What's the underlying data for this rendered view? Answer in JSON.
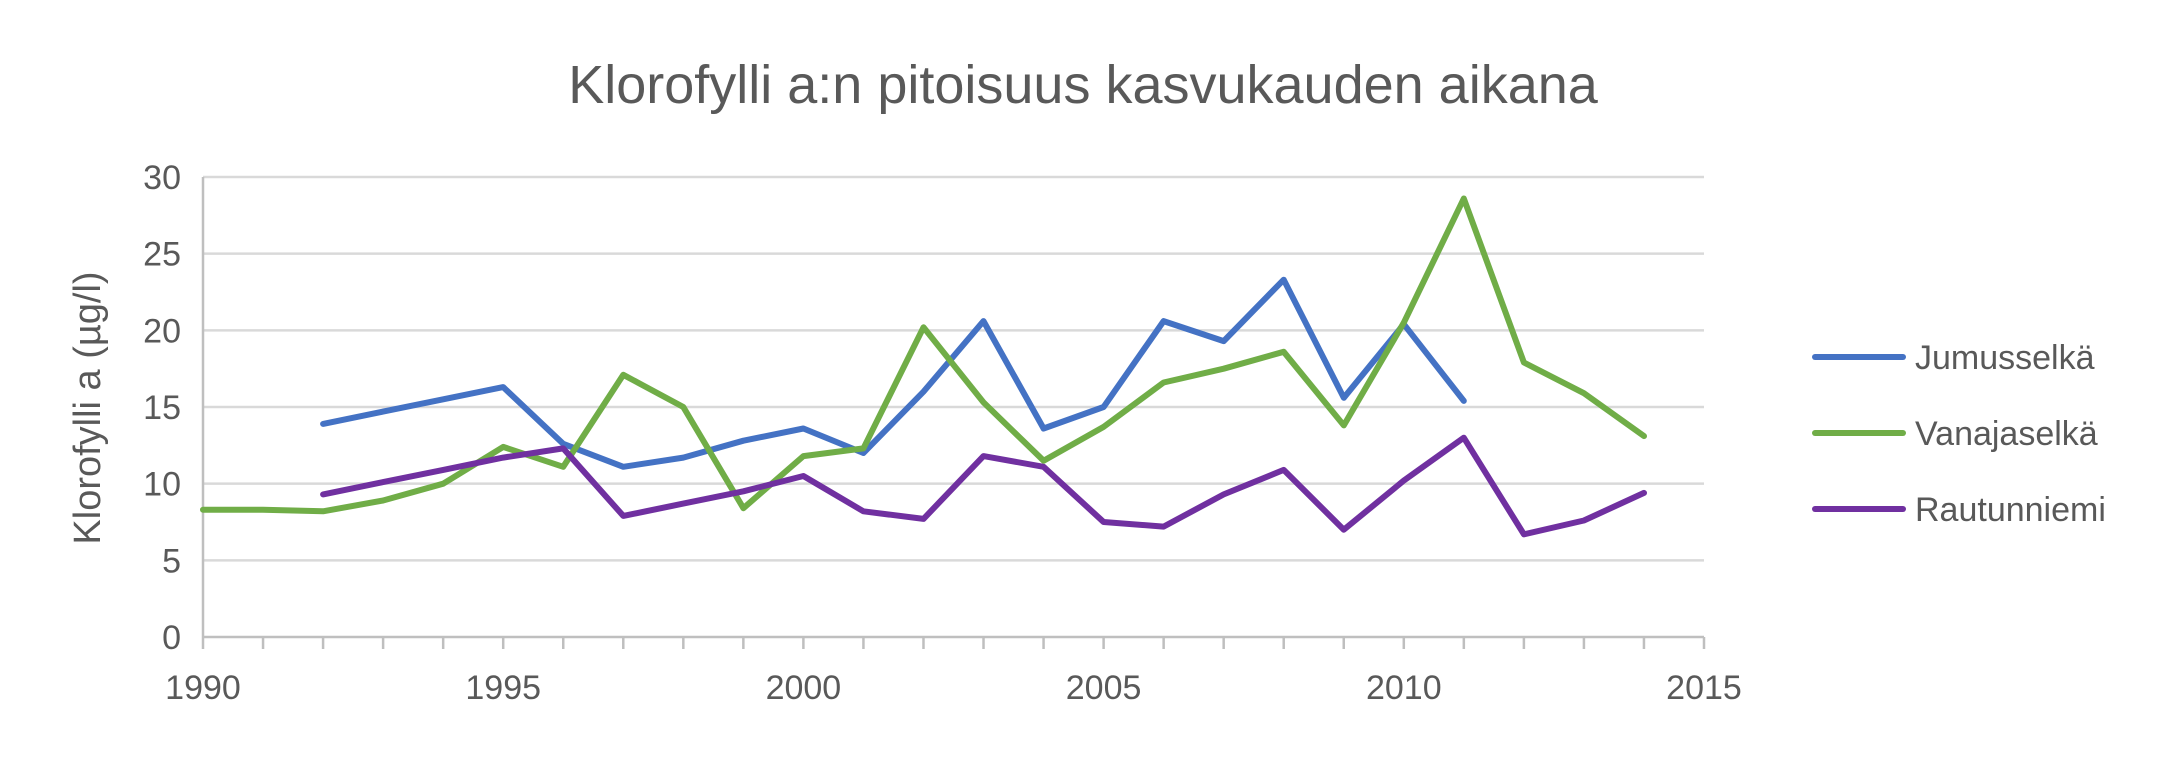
{
  "chart_data": {
    "type": "line",
    "title": "Klorofylli a:n pitoisuus kasvukauden aikana",
    "xlabel": "",
    "ylabel": "Klorofylli a (µg/l)",
    "xlim": [
      1990,
      2015
    ],
    "ylim": [
      0,
      30
    ],
    "xticks": [
      1990,
      1995,
      2000,
      2005,
      2010,
      2015
    ],
    "yticks": [
      0,
      5,
      10,
      15,
      20,
      25,
      30
    ],
    "grid": true,
    "legend": "right",
    "series": [
      {
        "name": "Jumusselkä",
        "color": "#4472c4",
        "x": [
          1992,
          1993,
          1994,
          1995,
          1996,
          1997,
          1998,
          1999,
          2000,
          2001,
          2002,
          2003,
          2004,
          2005,
          2006,
          2007,
          2008,
          2009,
          2010,
          2011
        ],
        "values": [
          13.9,
          14.7,
          15.5,
          16.3,
          12.6,
          11.1,
          11.7,
          12.8,
          13.6,
          12.0,
          16.0,
          20.6,
          13.6,
          15.0,
          20.6,
          19.3,
          23.3,
          15.6,
          20.4,
          15.4
        ]
      },
      {
        "name": "Vanajaselkä",
        "color": "#70ad47",
        "x": [
          1990,
          1991,
          1992,
          1993,
          1994,
          1995,
          1996,
          1997,
          1998,
          1999,
          2000,
          2001,
          2002,
          2003,
          2004,
          2005,
          2006,
          2007,
          2008,
          2009,
          2010,
          2011,
          2012,
          2013,
          2014
        ],
        "values": [
          8.3,
          8.3,
          8.2,
          8.9,
          10.0,
          12.4,
          11.1,
          17.1,
          15.0,
          8.4,
          11.8,
          12.3,
          20.2,
          15.3,
          11.5,
          13.7,
          16.6,
          17.5,
          18.6,
          13.8,
          20.5,
          28.6,
          17.9,
          15.9,
          13.1
        ]
      },
      {
        "name": "Rautunniemi",
        "color": "#7030a0",
        "x": [
          1992,
          1993,
          1994,
          1995,
          1996,
          1997,
          1998,
          1999,
          2000,
          2001,
          2002,
          2003,
          2004,
          2005,
          2006,
          2007,
          2008,
          2009,
          2010,
          2011,
          2012,
          2013,
          2014
        ],
        "values": [
          9.3,
          10.1,
          10.9,
          11.7,
          12.3,
          7.9,
          8.7,
          9.5,
          10.5,
          8.2,
          7.7,
          11.8,
          11.1,
          7.5,
          7.2,
          9.3,
          10.9,
          7.0,
          10.2,
          13.0,
          6.7,
          7.6,
          9.4
        ]
      }
    ]
  }
}
